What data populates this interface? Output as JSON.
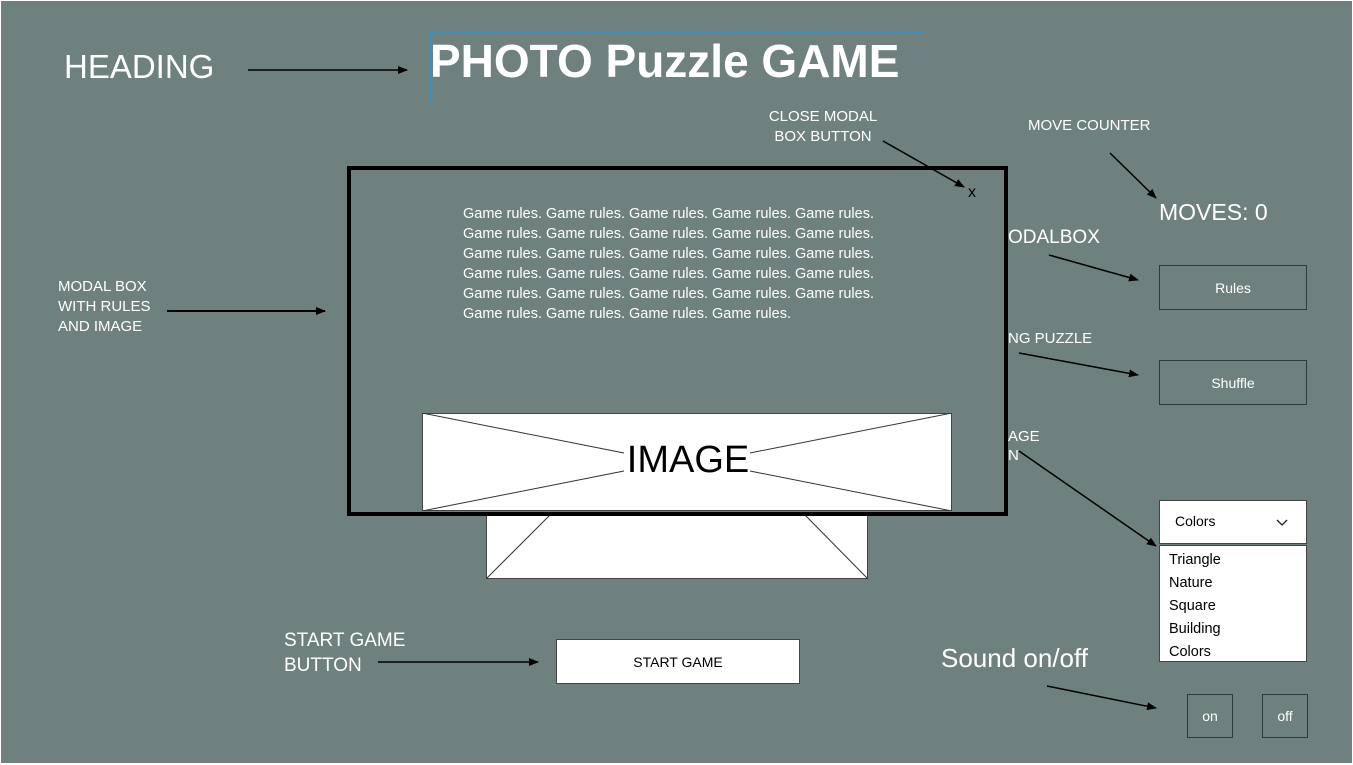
{
  "title": "PHOTO Puzzle GAME",
  "annotations": {
    "heading": "HEADING",
    "close_modal_line1": "CLOSE MODAL",
    "close_modal_line2": "BOX BUTTON",
    "move_counter": "MOVE COUNTER",
    "modalbox_partial": "ODALBOX",
    "puzzle_partial": "NG PUZZLE",
    "image_partial_line1": "AGE",
    "image_partial_line2": "N",
    "modal_box_line1": "MODAL BOX",
    "modal_box_line2": "WITH RULES",
    "modal_box_line3": "AND IMAGE",
    "start_game_line1": "START GAME",
    "start_game_line2": "BUTTON",
    "sound": "Sound on/off"
  },
  "modal": {
    "close_label": "x",
    "rules_lines": [
      "Game rules. Game rules. Game rules. Game rules. Game rules.",
      "Game rules. Game rules. Game rules. Game rules. Game rules.",
      "Game rules. Game rules. Game rules. Game rules. Game rules.",
      "Game rules. Game rules. Game rules. Game rules. Game rules.",
      "Game rules. Game rules. Game rules. Game rules. Game rules.",
      "Game rules. Game rules. Game rules. Game rules."
    ],
    "image_label": "IMAGE"
  },
  "moves": {
    "label": "MOVES: 0"
  },
  "buttons": {
    "rules": "Rules",
    "shuffle": "Shuffle",
    "start": "START GAME",
    "sound_on": "on",
    "sound_off": "off"
  },
  "dropdown": {
    "selected": "Colors",
    "options": [
      "Triangle",
      "Nature",
      "Square",
      "Building",
      "Colors"
    ]
  },
  "colors": {
    "background": "#6e817f",
    "white": "#ffffff",
    "heading_border": "#3a8fc0",
    "button_border": "#2f3a3a"
  }
}
